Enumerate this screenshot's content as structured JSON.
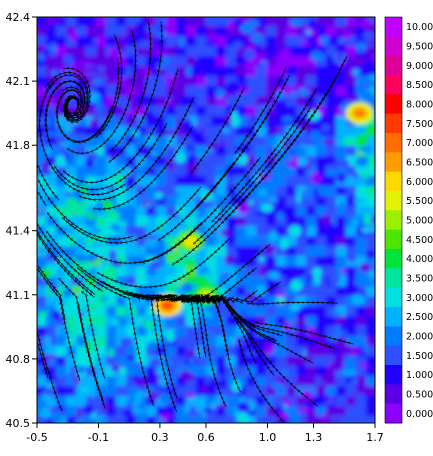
{
  "chart_data": {
    "type": "heatmap",
    "title": "",
    "xlabel": "",
    "ylabel": "",
    "xlim": [
      -0.5,
      1.7
    ],
    "ylim": [
      40.5,
      42.4
    ],
    "x_ticks": [
      "-0.5",
      "-0.1",
      "0.3",
      "0.6",
      "1.0",
      "1.3",
      "1.7"
    ],
    "y_ticks": [
      "42.4",
      "42.1",
      "41.8",
      "41.4",
      "41.1",
      "40.8",
      "40.5"
    ],
    "overlay": "streamlines",
    "colorbar": {
      "levels": [
        "10.00",
        "9.500",
        "9.000",
        "8.500",
        "8.000",
        "7.500",
        "7.000",
        "6.500",
        "6.000",
        "5.500",
        "5.000",
        "4.500",
        "4.000",
        "3.500",
        "3.000",
        "2.500",
        "2.000",
        "1.500",
        "1.000",
        "0.500",
        "0.000"
      ],
      "colors": [
        "#c000ff",
        "#d000d0",
        "#e0009a",
        "#ff0060",
        "#ff0000",
        "#ff3a00",
        "#ff6e00",
        "#ff9d00",
        "#ffd800",
        "#e2f200",
        "#9af000",
        "#4ee600",
        "#00e43a",
        "#00e6a0",
        "#00e0e0",
        "#00b2ff",
        "#007cff",
        "#2e50ff",
        "#2200ff",
        "#5a00e6",
        "#8c00ff"
      ]
    },
    "dominant_range": [
      0.5,
      3.0
    ],
    "hotspots": [
      {
        "x": 0.35,
        "y": 41.05,
        "value": 7.5
      },
      {
        "x": 0.5,
        "y": 41.35,
        "value": 6.0
      },
      {
        "x": 1.6,
        "y": 41.95,
        "value": 7.0
      },
      {
        "x": 0.6,
        "y": 41.1,
        "value": 5.5
      }
    ]
  }
}
